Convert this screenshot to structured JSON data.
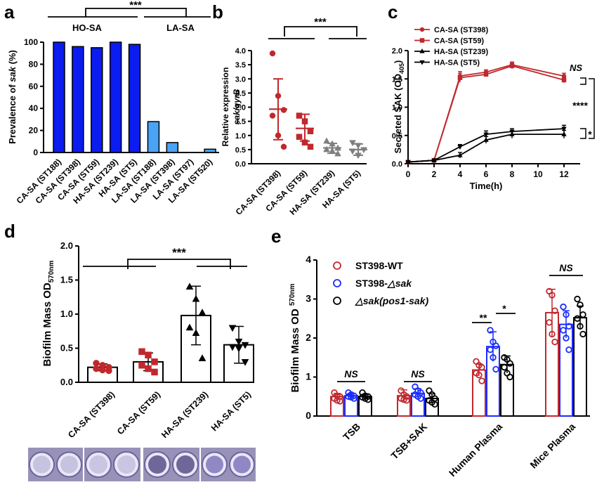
{
  "colors": {
    "dark_blue": "#0a1cf0",
    "light_blue": "#4aa3f5",
    "red": "#c0282d",
    "gray": "#7f7f7f",
    "black": "#000000",
    "blue": "#1a2cff"
  },
  "chart_data": [
    {
      "panel": "a",
      "type": "bar",
      "ylabel_parts": [
        "Prevalence of ",
        "sak",
        " (%)"
      ],
      "ylim": [
        0,
        100
      ],
      "yticks": [
        "0",
        "20",
        "40",
        "60",
        "80",
        "100"
      ],
      "categories": [
        "CA-SA (ST188)",
        "CA-SA (ST398)",
        "CA-SA (ST59)",
        "HA-SA (ST239)",
        "HA-SA (ST5)",
        "LA-SA (ST188)",
        "LA-SA (ST398)",
        "LA-SA (ST97)",
        "LA-SA (ST520)"
      ],
      "values": [
        100,
        96,
        95,
        100,
        98,
        28,
        9,
        0,
        3
      ],
      "bar_colors": [
        "dark_blue",
        "dark_blue",
        "dark_blue",
        "dark_blue",
        "dark_blue",
        "light_blue",
        "light_blue",
        "light_blue",
        "light_blue"
      ],
      "group_labels": [
        "HO-SA",
        "LA-SA"
      ],
      "significance": "***"
    },
    {
      "panel": "b",
      "type": "scatter",
      "ylabel": "Relative expression",
      "ylabel2": "sak/gyrB",
      "ylim": [
        0,
        4
      ],
      "yticks": [
        "0.0",
        "0.5",
        "1.0",
        "1.5",
        "2.0",
        "2.5",
        "3.0",
        "3.5",
        "4.0"
      ],
      "categories": [
        "CA-SA (ST398)",
        "CA-SA (ST59)",
        "HA-SA (ST239)",
        "HA-SA (ST5)"
      ],
      "series": [
        {
          "marker": "circle",
          "color": "red",
          "points": [
            3.9,
            2.4,
            1.9,
            1.7,
            1.0,
            0.6
          ],
          "mean": 1.93,
          "sd_low": 0.85,
          "sd_high": 3.0
        },
        {
          "marker": "square",
          "color": "red",
          "points": [
            1.7,
            1.5,
            1.15,
            0.95,
            0.75,
            0.6
          ],
          "mean": 1.25,
          "sd_low": 0.8,
          "sd_high": 1.75
        },
        {
          "marker": "triangle",
          "color": "gray",
          "points": [
            0.8,
            0.7,
            0.55,
            0.5,
            0.45,
            0.35
          ],
          "mean": 0.56,
          "sd_low": 0.37,
          "sd_high": 0.72
        },
        {
          "marker": "triangle-down",
          "color": "gray",
          "points": [
            0.75,
            0.65,
            0.5,
            0.45,
            0.3
          ],
          "mean": 0.5,
          "sd_low": 0.3,
          "sd_high": 0.7
        }
      ],
      "significance": "***"
    },
    {
      "panel": "c",
      "type": "line",
      "ylabel": "Secreted SAK (OD",
      "ylabel_sub": "405",
      "ylabel_end": ")",
      "xlabel": "Time(h)",
      "xlim": [
        0,
        12
      ],
      "ylim": [
        0,
        2.0
      ],
      "xticks": [
        "0",
        "2",
        "4",
        "6",
        "8",
        "10",
        "12"
      ],
      "yticks": [
        "0.0",
        "0.5",
        "1.0",
        "1.5",
        "2.0"
      ],
      "x": [
        0,
        2,
        4,
        6,
        8,
        12
      ],
      "series": [
        {
          "name": "CA-SA (ST398)",
          "marker": "circle",
          "color": "red",
          "values": [
            0.03,
            0.06,
            1.55,
            1.62,
            1.75,
            1.55
          ],
          "err": [
            0.01,
            0.01,
            0.08,
            0.04,
            0.05,
            0.05
          ]
        },
        {
          "name": "CA-SA (ST59)",
          "marker": "square",
          "color": "red",
          "values": [
            0.03,
            0.06,
            1.52,
            1.58,
            1.73,
            1.48
          ],
          "err": [
            0.01,
            0.01,
            0.08,
            0.04,
            0.05,
            0.05
          ]
        },
        {
          "name": "HA-SA (ST239)",
          "marker": "triangle",
          "color": "black",
          "values": [
            0.03,
            0.06,
            0.15,
            0.42,
            0.52,
            0.52
          ],
          "err": [
            0.01,
            0.01,
            0.05,
            0.06,
            0.07,
            0.07
          ]
        },
        {
          "name": "HA-SA (ST5)",
          "marker": "triangle-down",
          "color": "black",
          "values": [
            0.03,
            0.06,
            0.3,
            0.52,
            0.57,
            0.62
          ],
          "err": [
            0.01,
            0.01,
            0.04,
            0.06,
            0.05,
            0.06
          ]
        }
      ],
      "annotations": [
        "NS",
        "****",
        "*"
      ]
    },
    {
      "panel": "d",
      "type": "bar",
      "ylabel": "Biofilm Mass OD",
      "ylabel_sub": "570nm",
      "ylim": [
        0,
        2.0
      ],
      "yticks": [
        "0.0",
        "0.5",
        "1.0",
        "1.5",
        "2.0"
      ],
      "categories": [
        "CA-SA (ST398)",
        "CA-SA (ST59)",
        "HA-SA (ST239)",
        "HA-SA (ST5)"
      ],
      "values": [
        0.22,
        0.3,
        0.98,
        0.55
      ],
      "err": [
        0.05,
        0.13,
        0.43,
        0.27
      ],
      "points": [
        [
          0.28,
          0.25,
          0.22,
          0.2,
          0.18,
          0.17
        ],
        [
          0.45,
          0.4,
          0.3,
          0.25,
          0.2,
          0.15
        ],
        [
          1.4,
          1.22,
          1.02,
          0.8,
          0.72,
          0.35
        ],
        [
          0.8,
          0.6,
          0.55,
          0.52,
          0.5,
          0.3
        ]
      ],
      "markers": [
        "circle",
        "square",
        "triangle",
        "triangle-down"
      ],
      "point_colors": [
        "red",
        "red",
        "black",
        "black"
      ],
      "significance": "***"
    },
    {
      "panel": "e",
      "type": "bar",
      "ylabel": "Biofilm Mass OD ",
      "ylabel_sub": "570nm",
      "ylim": [
        0,
        4
      ],
      "yticks": [
        "0",
        "1",
        "2",
        "3",
        "4"
      ],
      "categories": [
        "TSB",
        "TSB+SAK",
        "Human Plasma",
        "Mice Plasma"
      ],
      "series": [
        {
          "name": "ST398-WT",
          "color": "red",
          "values": [
            0.5,
            0.52,
            1.18,
            2.65
          ],
          "err": [
            0.08,
            0.15,
            0.15,
            0.6
          ],
          "points": [
            [
              0.6,
              0.52,
              0.5,
              0.45,
              0.4,
              0.38
            ],
            [
              0.65,
              0.55,
              0.5,
              0.45,
              0.42,
              0.4
            ],
            [
              1.4,
              1.3,
              1.25,
              1.1,
              1.05,
              0.9
            ],
            [
              3.2,
              3.1,
              2.7,
              2.4,
              2.1,
              1.9
            ]
          ]
        },
        {
          "name_parts": [
            "ST398-",
            "△sak"
          ],
          "color": "blue",
          "values": [
            0.52,
            0.58,
            1.78,
            2.35
          ],
          "err": [
            0.06,
            0.12,
            0.38,
            0.35
          ],
          "points": [
            [
              0.6,
              0.55,
              0.52,
              0.5,
              0.48,
              0.45
            ],
            [
              0.75,
              0.65,
              0.6,
              0.55,
              0.5,
              0.45
            ],
            [
              2.2,
              1.9,
              1.8,
              1.7,
              1.5,
              1.2
            ],
            [
              2.8,
              2.6,
              2.3,
              2.2,
              2.0,
              1.7
            ]
          ]
        },
        {
          "name_parts": [
            "△sak(pos1-sak)"
          ],
          "color": "black",
          "values": [
            0.5,
            0.45,
            1.32,
            2.52
          ],
          "err": [
            0.06,
            0.12,
            0.22,
            0.3
          ],
          "points": [
            [
              0.6,
              0.52,
              0.5,
              0.48,
              0.45,
              0.42
            ],
            [
              0.65,
              0.55,
              0.45,
              0.4,
              0.35,
              0.3
            ],
            [
              1.5,
              1.45,
              1.35,
              1.25,
              1.1,
              1.0
            ],
            [
              3.0,
              2.85,
              2.6,
              2.5,
              2.3,
              2.1
            ]
          ]
        }
      ],
      "annotations": [
        "NS",
        "NS",
        "**",
        "*",
        "NS"
      ]
    }
  ],
  "panel_labels": [
    "a",
    "b",
    "c",
    "d",
    "e"
  ]
}
